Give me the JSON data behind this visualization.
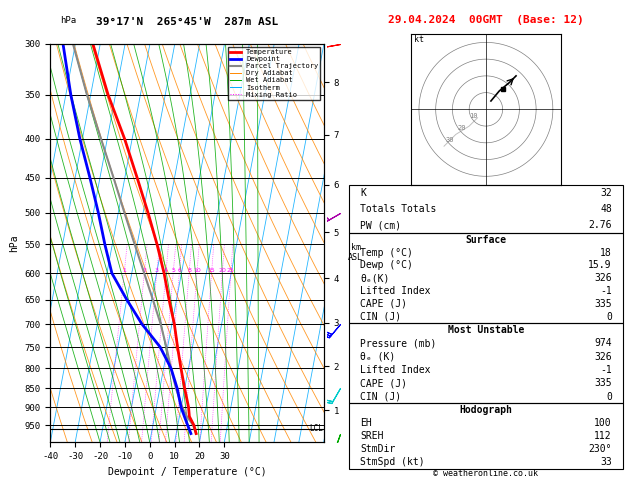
{
  "title_left": "39°17'N  265°45'W  287m ASL",
  "title_right": "29.04.2024  00GMT  (Base: 12)",
  "xlabel": "Dewpoint / Temperature (°C)",
  "ylabel_left": "hPa",
  "pressure_ticks": [
    300,
    350,
    400,
    450,
    500,
    550,
    600,
    650,
    700,
    750,
    800,
    850,
    900,
    950
  ],
  "x_ticks": [
    -40,
    -30,
    -20,
    -10,
    0,
    10,
    20,
    30
  ],
  "x_tick_labels": [
    "-40",
    "-30",
    "-20",
    "-10",
    "0",
    "10",
    "20",
    "30"
  ],
  "skew_factor": 25,
  "p_min": 300,
  "p_max": 1000,
  "temperature_data": {
    "pressure": [
      974,
      950,
      925,
      900,
      850,
      800,
      750,
      700,
      650,
      600,
      550,
      500,
      450,
      400,
      350,
      300
    ],
    "temp": [
      18,
      16.5,
      14,
      13,
      10,
      7,
      4,
      1,
      -3,
      -7,
      -12,
      -18,
      -25,
      -33,
      -43,
      -53
    ]
  },
  "dewpoint_data": {
    "pressure": [
      974,
      950,
      925,
      900,
      850,
      800,
      750,
      700,
      650,
      600,
      550,
      500,
      450,
      400,
      350,
      300
    ],
    "dewp": [
      15.9,
      14,
      12,
      10,
      7,
      3,
      -3,
      -12,
      -20,
      -28,
      -33,
      -38,
      -44,
      -51,
      -58,
      -65
    ]
  },
  "parcel_data": {
    "pressure": [
      974,
      950,
      925,
      900,
      850,
      800,
      750,
      700,
      650,
      600,
      550,
      500,
      450,
      400,
      350,
      300
    ],
    "temp": [
      18,
      16.2,
      13.0,
      10.5,
      6.5,
      3.0,
      -0.5,
      -4.5,
      -9.5,
      -15.0,
      -21.0,
      -27.5,
      -34.5,
      -42.5,
      -51.5,
      -61.0
    ]
  },
  "lcl_pressure": 960,
  "mixing_ratio_values": [
    1,
    2,
    3,
    4,
    5,
    6,
    8,
    10,
    15,
    20,
    25
  ],
  "km_ticks": [
    1,
    2,
    3,
    4,
    5,
    6,
    7,
    8
  ],
  "km_pressures": [
    908,
    795,
    697,
    609,
    530,
    459,
    395,
    337
  ],
  "wind_barb_data": [
    {
      "pressure": 974,
      "wspd": 15,
      "wdir": 200,
      "color": "#00aa00"
    },
    {
      "pressure": 850,
      "wspd": 20,
      "wdir": 210,
      "color": "#00cccc"
    },
    {
      "pressure": 700,
      "wspd": 30,
      "wdir": 220,
      "color": "#0000ff"
    },
    {
      "pressure": 500,
      "wspd": 25,
      "wdir": 240,
      "color": "#aa00aa"
    },
    {
      "pressure": 300,
      "wspd": 20,
      "wdir": 260,
      "color": "#ff0000"
    }
  ],
  "colors": {
    "temperature": "#ff0000",
    "dewpoint": "#0000ff",
    "parcel": "#888888",
    "dry_adiabat": "#ff8800",
    "wet_adiabat": "#00aa00",
    "isotherm": "#00aaff",
    "mixing_ratio": "#ff00ff",
    "background": "#ffffff",
    "grid": "#000000"
  },
  "stats": {
    "K": 32,
    "Totals_Totals": 48,
    "PW_cm": 2.76,
    "Surface_Temp": 18,
    "Surface_Dewp": 15.9,
    "Surface_ThetaE": 326,
    "Surface_LiftedIndex": -1,
    "Surface_CAPE": 335,
    "Surface_CIN": 0,
    "MU_Pressure": 974,
    "MU_ThetaE": 326,
    "MU_LiftedIndex": -1,
    "MU_CAPE": 335,
    "MU_CIN": 0,
    "Hodo_EH": 100,
    "Hodo_SREH": 112,
    "Hodo_StmDir": 230,
    "Hodo_StmSpd": 33
  },
  "legend_entries": [
    {
      "label": "Temperature",
      "color": "#ff0000",
      "lw": 2,
      "ls": "-"
    },
    {
      "label": "Dewpoint",
      "color": "#0000ff",
      "lw": 2,
      "ls": "-"
    },
    {
      "label": "Parcel Trajectory",
      "color": "#888888",
      "lw": 1.5,
      "ls": "-"
    },
    {
      "label": "Dry Adiabat",
      "color": "#ff8800",
      "lw": 0.7,
      "ls": "-"
    },
    {
      "label": "Wet Adiabat",
      "color": "#00aa00",
      "lw": 0.7,
      "ls": "-"
    },
    {
      "label": "Isotherm",
      "color": "#00aaff",
      "lw": 0.7,
      "ls": "-"
    },
    {
      "label": "Mixing Ratio",
      "color": "#ff00ff",
      "lw": 0.7,
      "ls": ":"
    }
  ]
}
